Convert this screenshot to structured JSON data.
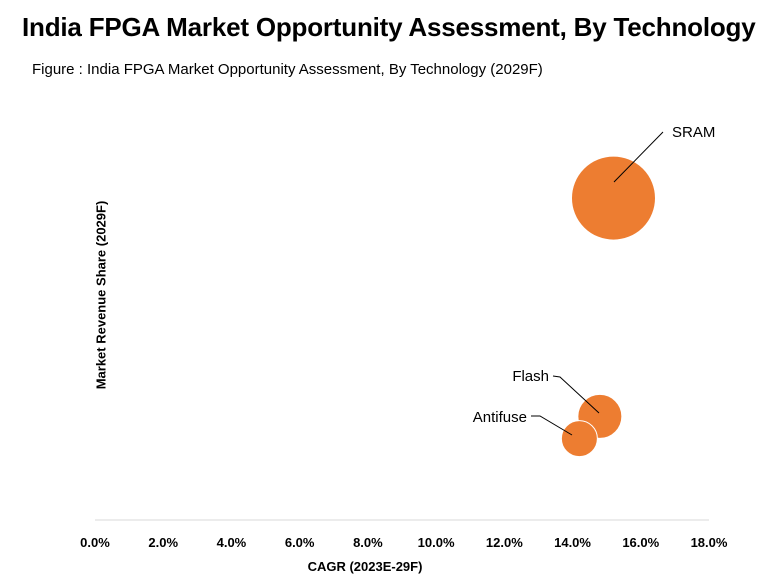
{
  "title": "India FPGA Market Opportunity Assessment, By Technology",
  "subtitle": "Figure : India FPGA Market Opportunity Assessment, By Technology (2029F)",
  "chart_data": {
    "type": "scatter",
    "title": "India FPGA Market Opportunity Assessment, By Technology",
    "subtitle": "Figure : India FPGA Market Opportunity Assessment, By Technology (2029F)",
    "xlabel": "CAGR (2023E-29F)",
    "ylabel": "Market Revenue Share (2029F)",
    "xlim": [
      0,
      18
    ],
    "x_ticks": [
      "0.0%",
      "2.0%",
      "4.0%",
      "6.0%",
      "8.0%",
      "10.0%",
      "12.0%",
      "14.0%",
      "16.0%",
      "18.0%"
    ],
    "grid": false,
    "legend": "none",
    "points": [
      {
        "name": "SRAM",
        "x": 15.2,
        "y": 87,
        "size": 42
      },
      {
        "name": "Flash",
        "x": 14.8,
        "y": 28,
        "size": 22
      },
      {
        "name": "Antifuse",
        "x": 14.2,
        "y": 22,
        "size": 18
      }
    ]
  }
}
